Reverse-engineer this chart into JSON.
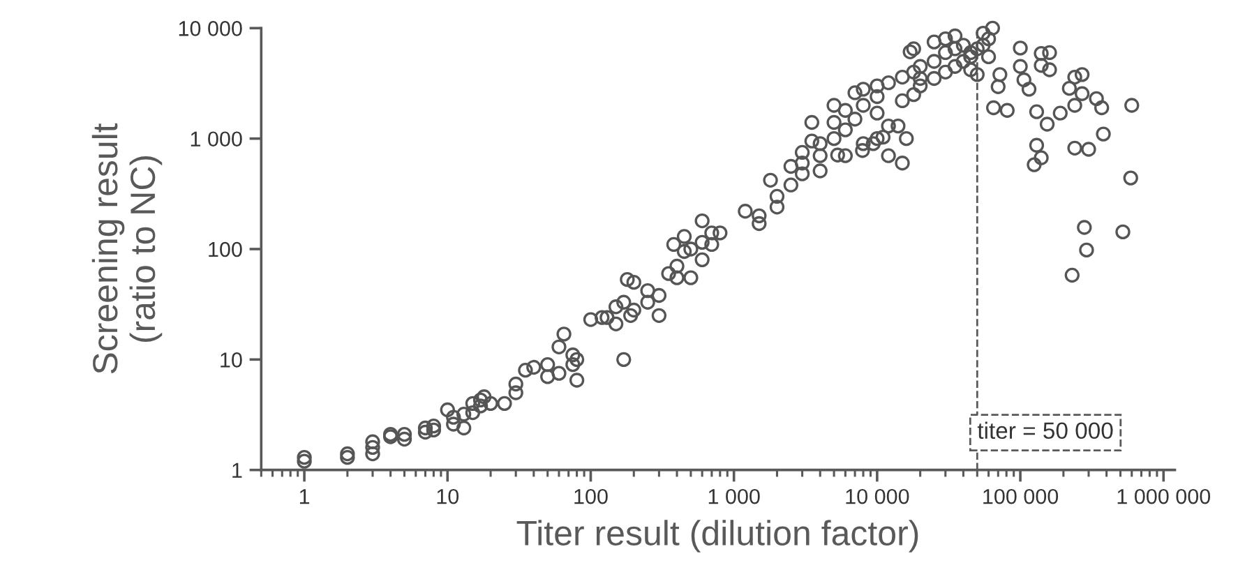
{
  "chart_data": {
    "type": "scatter",
    "xlabel": "Titer result (dilution factor)",
    "ylabel": "Screening result\n(ratio to NC)",
    "log": "xy",
    "grid": false,
    "marker": "circle",
    "xlim": [
      0.5,
      1200000
    ],
    "ylim": [
      1,
      10000
    ],
    "xticks": [
      1,
      10,
      100,
      {
        "value": 1000,
        "label": "1 000"
      },
      {
        "value": 10000,
        "label": "10 000"
      },
      {
        "value": 100000,
        "label": "100 000"
      },
      {
        "value": 1000000,
        "label": "1 000 000"
      }
    ],
    "yticks": [
      1,
      10,
      100,
      {
        "value": 1000,
        "label": "1 000"
      },
      {
        "value": 10000,
        "label": "10 000"
      }
    ],
    "ref_lines": [
      {
        "axis": "x",
        "value": 50000,
        "label": "titer = 50 000",
        "color": "#595959",
        "line_style": "dashed"
      }
    ],
    "series": [
      {
        "color": "#555555",
        "x": [
          1,
          1,
          2,
          2,
          3,
          3,
          3,
          4,
          4,
          5,
          5,
          7,
          7,
          8,
          8,
          10,
          11,
          11,
          13,
          13,
          15,
          15,
          17,
          17,
          18,
          20,
          25,
          30,
          30,
          35,
          40,
          50,
          50,
          60,
          60,
          65,
          75,
          75,
          80,
          80,
          100,
          120,
          130,
          150,
          150,
          170,
          170,
          180,
          190,
          200,
          200,
          250,
          250,
          300,
          300,
          350,
          380,
          400,
          400,
          450,
          450,
          500,
          500,
          600,
          600,
          600,
          700,
          700,
          800,
          1200,
          1500,
          1500,
          1800,
          2000,
          2000,
          2500,
          2500,
          3000,
          3000,
          3000,
          3500,
          3500,
          4000,
          4000,
          4000,
          5000,
          5000,
          5000,
          5300,
          6000,
          6000,
          6000,
          7000,
          7000,
          7900,
          8000,
          8000,
          8000,
          9400,
          10000,
          10000,
          10000,
          10000,
          11000,
          12000,
          12000,
          12000,
          14000,
          15000,
          15000,
          15000,
          16000,
          17000,
          18000,
          18000,
          18000,
          20000,
          20000,
          20000,
          25000,
          25000,
          25000,
          30000,
          30000,
          30000,
          35000,
          35000,
          35000,
          40000,
          40000,
          45000,
          45000,
          45000,
          50000,
          50000,
          55000,
          55000,
          60000,
          60000,
          64000,
          65000,
          70000,
          72000,
          81000,
          100000,
          100000,
          106000,
          115000,
          125000,
          130000,
          130000,
          140000,
          140000,
          140000,
          154000,
          160000,
          160000,
          190000,
          220000,
          230000,
          240000,
          240000,
          240000,
          270000,
          270000,
          280000,
          290000,
          300000,
          340000,
          370000,
          380000,
          520000,
          590000,
          600000
        ],
        "values": [
          1.2,
          1.3,
          1.3,
          1.4,
          1.4,
          1.6,
          1.8,
          2.0,
          2.1,
          1.9,
          2.1,
          2.2,
          2.4,
          2.3,
          2.5,
          3.5,
          2.6,
          3.0,
          2.4,
          3.2,
          3.3,
          4.0,
          4.3,
          3.8,
          4.6,
          4.0,
          4.0,
          5.0,
          6.0,
          8.0,
          8.5,
          9,
          7,
          13,
          7.5,
          17,
          9,
          11,
          6.5,
          10,
          23,
          24,
          24,
          21,
          30,
          10,
          33,
          53,
          25,
          28,
          50,
          42,
          33,
          38,
          25,
          60,
          110,
          55,
          70,
          95,
          130,
          55,
          100,
          80,
          180,
          115,
          110,
          140,
          140,
          220,
          200,
          170,
          420,
          300,
          240,
          380,
          560,
          480,
          600,
          750,
          950,
          1400,
          510,
          700,
          900,
          1000,
          1400,
          2000,
          710,
          700,
          1200,
          1800,
          1500,
          2600,
          780,
          900,
          2000,
          2800,
          900,
          1000,
          1700,
          2400,
          3000,
          1030,
          700,
          1300,
          3200,
          1300,
          600,
          2200,
          3600,
          1000,
          6100,
          2500,
          4000,
          6500,
          3000,
          3500,
          4500,
          3500,
          5000,
          7500,
          4000,
          6000,
          8000,
          4500,
          6500,
          8500,
          5000,
          7000,
          5500,
          4200,
          6000,
          6500,
          3800,
          7000,
          9000,
          5500,
          8000,
          10000,
          1900,
          2950,
          3800,
          1800,
          6600,
          4500,
          3400,
          2800,
          580,
          870,
          1750,
          670,
          4600,
          5900,
          1350,
          6000,
          4200,
          1700,
          2850,
          58,
          3600,
          2000,
          820,
          3800,
          2550,
          157,
          98,
          800,
          2300,
          1900,
          1100,
          143,
          440,
          2000
        ]
      }
    ]
  }
}
